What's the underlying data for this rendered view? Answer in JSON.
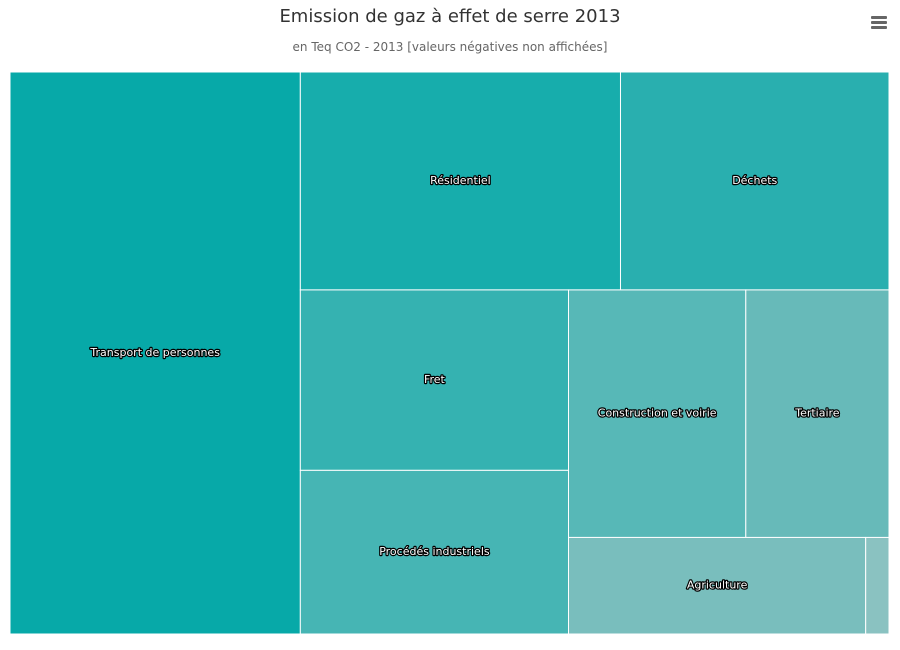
{
  "header": {
    "menu_icon": "hamburger-menu-icon"
  },
  "chart_data": {
    "type": "treemap",
    "title": "Emission de gaz à effet de serre 2013",
    "subtitle": "en Teq CO2 - 2013 [valeurs négatives non affichées]",
    "unit": "Teq CO2",
    "cells": [
      {
        "name": "Transport de personnes",
        "value": 29.0,
        "color": "#07a9a8"
      },
      {
        "name": "Résidentiel",
        "value": 12.4,
        "color": "#17adac"
      },
      {
        "name": "Déchets",
        "value": 10.4,
        "color": "#29afaf"
      },
      {
        "name": "Fret",
        "value": 8.6,
        "color": "#35b2b1"
      },
      {
        "name": "Procédés industriels",
        "value": 7.8,
        "color": "#46b5b4"
      },
      {
        "name": "Construction et voirie",
        "value": 7.8,
        "color": "#57b8b7"
      },
      {
        "name": "Tertiaire",
        "value": 6.3,
        "color": "#67bab9"
      },
      {
        "name": "Agriculture",
        "value": 5.1,
        "color": "#79bebd"
      },
      {
        "name": "",
        "value": 0.4,
        "color": "#8ac2c1"
      }
    ]
  }
}
